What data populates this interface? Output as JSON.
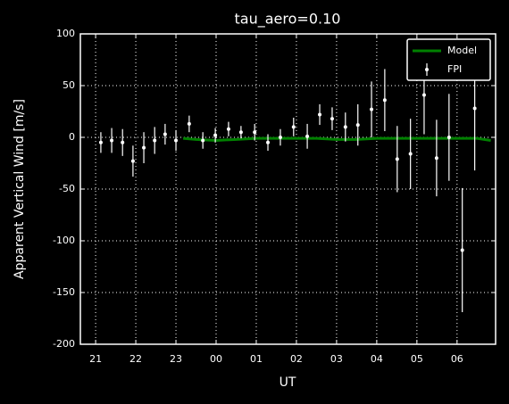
{
  "chart_data": {
    "type": "line",
    "title": "tau_aero=0.10",
    "xlabel": "UT",
    "ylabel": "Apparent Vertical Wind [m/s]",
    "xlim": [
      20.62,
      30.96
    ],
    "ylim": [
      -200,
      100
    ],
    "xticks": [
      21,
      22,
      23,
      {
        "value": 24,
        "label": "00"
      },
      {
        "value": 25,
        "label": "01"
      },
      {
        "value": 26,
        "label": "02"
      },
      {
        "value": 27,
        "label": "03"
      },
      {
        "value": 28,
        "label": "04"
      },
      {
        "value": 29,
        "label": "05"
      },
      {
        "value": 30,
        "label": "06"
      }
    ],
    "yticks": [
      -200,
      -150,
      -100,
      -50,
      0,
      50,
      100
    ],
    "grid": true,
    "legend": "upper right",
    "series": [
      {
        "name": "Model",
        "color": "#008000",
        "kind": "line",
        "x": [
          23.18,
          23.5,
          24,
          24.5,
          25,
          25.5,
          26,
          26.5,
          27,
          27.5,
          28,
          28.5,
          29,
          29.5,
          30,
          30.5,
          30.84
        ],
        "values": [
          -1,
          -2,
          -3,
          -2,
          -1,
          -1,
          -1,
          -1,
          -2,
          -2,
          -1,
          -1,
          -1,
          -1,
          -1,
          -1,
          -3
        ]
      },
      {
        "name": "FPI",
        "color": "#ffffff",
        "kind": "errorbar",
        "x": [
          21.13,
          21.4,
          21.67,
          21.93,
          22.2,
          22.47,
          22.73,
          23.0,
          23.33,
          23.67,
          23.98,
          24.31,
          24.62,
          24.96,
          25.29,
          25.6,
          25.93,
          26.27,
          26.58,
          26.89,
          27.22,
          27.53,
          27.87,
          28.2,
          28.51,
          28.84,
          29.18,
          29.49,
          29.8,
          30.13,
          30.44
        ],
        "values": [
          -5,
          -3,
          -5,
          -23,
          -10,
          -3,
          3,
          -3,
          13,
          -3,
          2,
          8,
          5,
          5,
          -5,
          0,
          10,
          1,
          22,
          18,
          10,
          12,
          27,
          36,
          -21,
          -16,
          41,
          -20,
          0,
          -109,
          28
        ],
        "errors": [
          10,
          12,
          13,
          15,
          15,
          13,
          10,
          10,
          8,
          8,
          7,
          7,
          6,
          8,
          8,
          8,
          9,
          12,
          10,
          11,
          14,
          20,
          27,
          30,
          32,
          34,
          38,
          37,
          42,
          60,
          60
        ]
      }
    ]
  }
}
